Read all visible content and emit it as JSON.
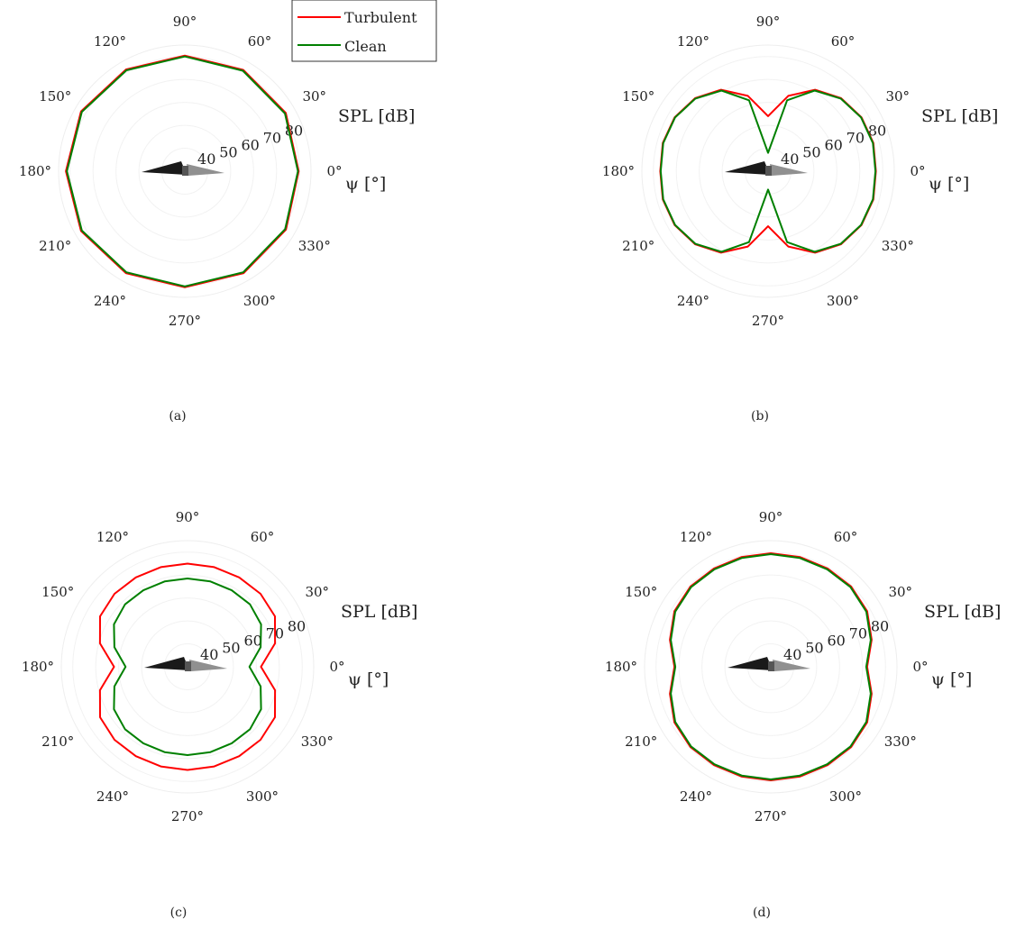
{
  "legend": {
    "entries": [
      "Turbulent",
      "Clean"
    ]
  },
  "colors": {
    "Turbulent": "#ff0000",
    "Clean": "#008000",
    "airfoil_dark": "#1a1a1a",
    "airfoil_light": "#909090"
  },
  "chart_data": [
    {
      "type": "polar",
      "panel": "(a)",
      "theta_ticks": [
        "0°",
        "30°",
        "60°",
        "90°",
        "120°",
        "150°",
        "180°",
        "210°",
        "240°",
        "270°",
        "300°",
        "330°"
      ],
      "r_ticks": [
        "40",
        "50",
        "60",
        "70",
        "80"
      ],
      "r_label": "SPL [dB]",
      "theta_label": "ψ [°]",
      "rlim": [
        30,
        85
      ],
      "legend": [
        "Turbulent",
        "Clean"
      ],
      "series": [
        {
          "name": "Turbulent",
          "theta_deg": [
            0,
            30,
            60,
            90,
            120,
            150,
            180,
            210,
            240,
            270,
            300,
            330
          ],
          "values": [
            79.6,
            80.8,
            81.0,
            80.4,
            81.2,
            82.2,
            81.8,
            82.2,
            81.3,
            80.6,
            81.3,
            80.9
          ]
        },
        {
          "name": "Clean",
          "theta_deg": [
            0,
            30,
            60,
            90,
            120,
            150,
            180,
            210,
            240,
            270,
            300,
            330
          ],
          "values": [
            79.3,
            80.4,
            80.6,
            80.0,
            80.8,
            81.8,
            81.4,
            81.8,
            80.9,
            80.2,
            80.9,
            80.5
          ]
        }
      ]
    },
    {
      "type": "polar",
      "panel": "(b)",
      "theta_ticks": [
        "0°",
        "30°",
        "60°",
        "90°",
        "120°",
        "150°",
        "180°",
        "210°",
        "240°",
        "270°",
        "300°",
        "330°"
      ],
      "r_ticks": [
        "40",
        "50",
        "60",
        "70",
        "80"
      ],
      "r_label": "SPL [dB]",
      "theta_label": "ψ [°]",
      "rlim": [
        30,
        85
      ],
      "series": [
        {
          "name": "Turbulent",
          "theta_deg": [
            0,
            15,
            30,
            45,
            60,
            75,
            90,
            105,
            120,
            135,
            150,
            165,
            180,
            195,
            210,
            225,
            240,
            255,
            270,
            285,
            300,
            315,
            330,
            345
          ],
          "values": [
            77.0,
            77.5,
            77.0,
            75.0,
            71.0,
            64.0,
            54.0,
            64.0,
            71.0,
            75.0,
            77.0,
            77.5,
            77.0,
            77.5,
            77.0,
            75.0,
            71.0,
            64.0,
            54.0,
            64.0,
            71.0,
            75.0,
            77.0,
            77.5
          ]
        },
        {
          "name": "Clean",
          "theta_deg": [
            0,
            15,
            30,
            45,
            60,
            75,
            90,
            105,
            120,
            135,
            150,
            165,
            180,
            195,
            210,
            225,
            240,
            255,
            270,
            285,
            300,
            315,
            330,
            345
          ],
          "values": [
            76.8,
            77.3,
            76.8,
            74.8,
            70.6,
            62.0,
            38.0,
            62.0,
            70.6,
            74.8,
            76.8,
            77.3,
            76.8,
            77.3,
            76.8,
            74.8,
            70.6,
            62.0,
            38.0,
            62.0,
            70.6,
            74.8,
            76.8,
            77.3
          ]
        }
      ]
    },
    {
      "type": "polar",
      "panel": "(c)",
      "theta_ticks": [
        "0°",
        "30°",
        "60°",
        "90°",
        "120°",
        "150°",
        "180°",
        "210°",
        "240°",
        "270°",
        "300°",
        "330°"
      ],
      "r_ticks": [
        "40",
        "50",
        "60",
        "70",
        "80"
      ],
      "r_label": "SPL [dB]",
      "theta_label": "ψ [°]",
      "rlim": [
        30,
        85
      ],
      "series": [
        {
          "name": "Turbulent",
          "theta_deg": [
            0,
            15,
            30,
            45,
            60,
            75,
            90,
            105,
            120,
            135,
            150,
            165,
            180,
            195,
            210,
            225,
            240,
            255,
            270,
            285,
            300,
            315,
            330,
            345
          ],
          "values": [
            62.0,
            69.5,
            74.0,
            75.0,
            75.0,
            75.0,
            75.0,
            75.0,
            75.0,
            75.0,
            74.0,
            69.5,
            62.0,
            69.5,
            74.0,
            75.0,
            75.0,
            75.0,
            75.0,
            75.0,
            75.0,
            75.0,
            74.0,
            69.5
          ]
        },
        {
          "name": "Clean",
          "theta_deg": [
            0,
            15,
            30,
            45,
            60,
            75,
            90,
            105,
            120,
            135,
            150,
            165,
            180,
            195,
            210,
            225,
            240,
            255,
            270,
            285,
            300,
            315,
            330,
            345
          ],
          "values": [
            57.0,
            63.0,
            67.0,
            68.5,
            68.5,
            68.5,
            68.5,
            68.5,
            68.5,
            68.5,
            67.0,
            63.0,
            57.0,
            63.0,
            67.0,
            68.5,
            68.5,
            68.5,
            68.5,
            68.5,
            68.5,
            68.5,
            67.0,
            63.0
          ]
        }
      ]
    },
    {
      "type": "polar",
      "panel": "(d)",
      "theta_ticks": [
        "0°",
        "30°",
        "60°",
        "90°",
        "120°",
        "150°",
        "180°",
        "210°",
        "240°",
        "270°",
        "300°",
        "330°"
      ],
      "r_ticks": [
        "40",
        "50",
        "60",
        "70",
        "80"
      ],
      "r_label": "SPL [dB]",
      "theta_label": "ψ [°]",
      "rlim": [
        30,
        85
      ],
      "series": [
        {
          "name": "Turbulent",
          "theta_deg": [
            0,
            15,
            30,
            45,
            60,
            75,
            90,
            105,
            120,
            135,
            150,
            165,
            180,
            195,
            210,
            225,
            240,
            255,
            270,
            285,
            300,
            315,
            330,
            345
          ],
          "values": [
            72.0,
            75.5,
            78.5,
            79.5,
            79.5,
            79.5,
            79.5,
            79.5,
            79.5,
            79.5,
            78.5,
            75.5,
            72.0,
            75.5,
            78.5,
            79.5,
            79.5,
            79.5,
            79.5,
            79.5,
            79.5,
            79.5,
            78.5,
            75.5
          ]
        },
        {
          "name": "Clean",
          "theta_deg": [
            0,
            15,
            30,
            45,
            60,
            75,
            90,
            105,
            120,
            135,
            150,
            165,
            180,
            195,
            210,
            225,
            240,
            255,
            270,
            285,
            300,
            315,
            330,
            345
          ],
          "values": [
            71.6,
            75.1,
            78.1,
            79.1,
            79.1,
            79.1,
            79.1,
            79.1,
            79.1,
            79.1,
            78.1,
            75.1,
            71.6,
            75.1,
            78.1,
            79.1,
            79.1,
            79.1,
            79.1,
            79.1,
            79.1,
            79.1,
            78.1,
            75.1
          ]
        }
      ]
    }
  ]
}
